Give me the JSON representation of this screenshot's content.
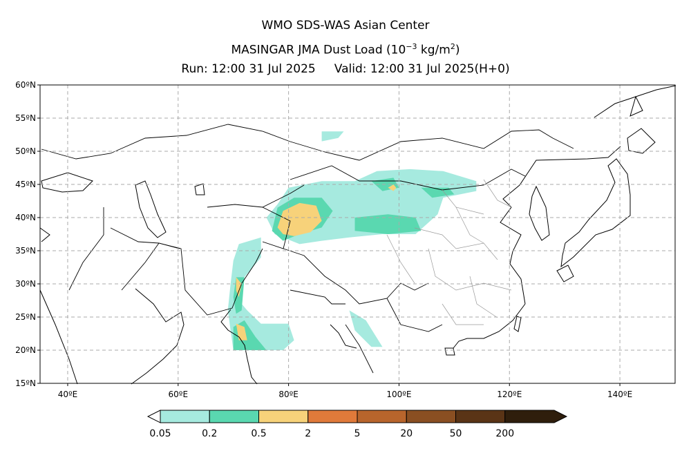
{
  "header": {
    "center": "WMO SDS-WAS Asian Center",
    "product_prefix": "MASINGAR JMA Dust Load (10",
    "unit_exp": "−3",
    "unit_mid": " kg/m",
    "unit_exp2": "2",
    "unit_suffix": ")",
    "run": "Run: 12:00 31 Jul 2025",
    "valid": "Valid: 12:00 31 Jul 2025(H+0)"
  },
  "map": {
    "lon_range": [
      35,
      150
    ],
    "lat_range": [
      15,
      60
    ],
    "lat_ticks": [
      {
        "value": 60,
        "label": "60ºN"
      },
      {
        "value": 55,
        "label": "55ºN"
      },
      {
        "value": 50,
        "label": "50ºN"
      },
      {
        "value": 45,
        "label": "45ºN"
      },
      {
        "value": 40,
        "label": "40ºN"
      },
      {
        "value": 35,
        "label": "35ºN"
      },
      {
        "value": 30,
        "label": "30ºN"
      },
      {
        "value": 25,
        "label": "25ºN"
      },
      {
        "value": 20,
        "label": "20ºN"
      },
      {
        "value": 15,
        "label": "15ºN"
      }
    ],
    "lon_ticks": [
      {
        "value": 40,
        "label": "40ºE"
      },
      {
        "value": 60,
        "label": "60ºE"
      },
      {
        "value": 80,
        "label": "80ºE"
      },
      {
        "value": 100,
        "label": "100ºE"
      },
      {
        "value": 120,
        "label": "120ºE"
      },
      {
        "value": 140,
        "label": "140ºE"
      }
    ],
    "grid": true
  },
  "colorbar": {
    "labels": [
      "0.05",
      "0.2",
      "0.5",
      "2",
      "5",
      "20",
      "50",
      "200"
    ],
    "colors": [
      "#a6eadf",
      "#5ad8b0",
      "#f7d27a",
      "#e07a3a",
      "#b8652c",
      "#8a4f22",
      "#5a3416",
      "#2f1e0c"
    ]
  },
  "dust_regions": [
    {
      "level": 0,
      "lonlat": [
        [
          78,
          42
        ],
        [
          80,
          44.5
        ],
        [
          86,
          45.5
        ],
        [
          92,
          45.5
        ],
        [
          96,
          47
        ],
        [
          102,
          47.3
        ],
        [
          108,
          47
        ],
        [
          114,
          45.5
        ],
        [
          114,
          44
        ],
        [
          108,
          43
        ],
        [
          107,
          40.5
        ],
        [
          103,
          37.5
        ],
        [
          97,
          37.5
        ],
        [
          91,
          37
        ],
        [
          86,
          36.5
        ],
        [
          82,
          36
        ],
        [
          77.5,
          37.5
        ],
        [
          76,
          40
        ]
      ]
    },
    {
      "level": 0,
      "lonlat": [
        [
          71,
          36
        ],
        [
          75,
          37
        ],
        [
          75,
          34
        ],
        [
          72,
          31
        ],
        [
          70.5,
          28
        ],
        [
          72.5,
          26
        ],
        [
          75,
          24
        ],
        [
          80,
          24
        ],
        [
          81,
          21.5
        ],
        [
          79,
          20
        ],
        [
          70,
          20
        ],
        [
          69.5,
          23
        ],
        [
          69,
          26
        ],
        [
          69.5,
          30
        ],
        [
          70,
          33.5
        ]
      ]
    },
    {
      "level": 0,
      "lonlat": [
        [
          86,
          53
        ],
        [
          90,
          53
        ],
        [
          89,
          52
        ],
        [
          86,
          51.5
        ]
      ]
    },
    {
      "level": 0,
      "lonlat": [
        [
          91,
          26
        ],
        [
          94,
          24.5
        ],
        [
          97,
          20.5
        ],
        [
          95,
          20.5
        ],
        [
          92,
          23
        ]
      ]
    },
    {
      "level": 1,
      "lonlat": [
        [
          77,
          38
        ],
        [
          78,
          41.5
        ],
        [
          81,
          43
        ],
        [
          86,
          43
        ],
        [
          88,
          41
        ],
        [
          86,
          38.5
        ],
        [
          82,
          37.5
        ],
        [
          79,
          36.5
        ]
      ]
    },
    {
      "level": 1,
      "lonlat": [
        [
          95,
          45.5
        ],
        [
          99,
          46
        ],
        [
          100,
          44.5
        ],
        [
          97,
          44
        ]
      ]
    },
    {
      "level": 1,
      "lonlat": [
        [
          104,
          44.5
        ],
        [
          109,
          44.5
        ],
        [
          110,
          43.5
        ],
        [
          106,
          43
        ]
      ]
    },
    {
      "level": 1,
      "lonlat": [
        [
          92,
          40
        ],
        [
          98,
          40.5
        ],
        [
          103,
          40
        ],
        [
          104,
          38
        ],
        [
          98,
          37.5
        ],
        [
          92,
          38
        ]
      ]
    },
    {
      "level": 1,
      "lonlat": [
        [
          70.5,
          31
        ],
        [
          72,
          31
        ],
        [
          71.5,
          26
        ],
        [
          70.5,
          25.5
        ],
        [
          70,
          28
        ]
      ]
    },
    {
      "level": 1,
      "lonlat": [
        [
          70,
          23.5
        ],
        [
          72,
          24.5
        ],
        [
          74,
          22
        ],
        [
          76,
          20
        ],
        [
          70,
          20
        ]
      ]
    },
    {
      "level": 2,
      "lonlat": [
        [
          78,
          38.5
        ],
        [
          79,
          41
        ],
        [
          82,
          42.2
        ],
        [
          85,
          41.8
        ],
        [
          86,
          39.5
        ],
        [
          84,
          37.8
        ],
        [
          81,
          37.2
        ],
        [
          79,
          37.5
        ]
      ]
    },
    {
      "level": 2,
      "lonlat": [
        [
          98,
          44.5
        ],
        [
          99,
          45
        ],
        [
          99.5,
          44.5
        ],
        [
          99,
          44
        ]
      ]
    },
    {
      "level": 2,
      "lonlat": [
        [
          70.5,
          31
        ],
        [
          71.5,
          30
        ],
        [
          71,
          28
        ],
        [
          70.5,
          29
        ]
      ]
    },
    {
      "level": 2,
      "lonlat": [
        [
          70.5,
          24
        ],
        [
          72,
          23.5
        ],
        [
          72.5,
          21.5
        ],
        [
          71,
          21.5
        ]
      ]
    }
  ]
}
